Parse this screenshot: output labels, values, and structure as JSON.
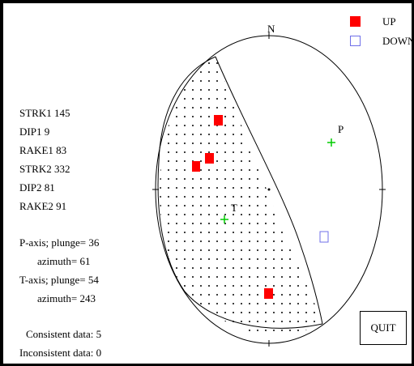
{
  "params": {
    "strk1": "STRK1  145",
    "dip1": "DIP1   9",
    "rake1": "RAKE1  83",
    "strk2": "STRK2  332",
    "dip2": "DIP2   81",
    "rake2": "RAKE2  91"
  },
  "axes": {
    "p_plunge": "P-axis; plunge= 36",
    "p_azimuth": "azimuth= 61",
    "t_plunge": "T-axis; plunge= 54",
    "t_azimuth": "azimuth= 243"
  },
  "summary": {
    "consistent": "Consistent data:  5",
    "inconsistent": "Inconsistent data:  0"
  },
  "legend": {
    "up_label": "UP",
    "down_label": "DOWN"
  },
  "net": {
    "north_label": "N",
    "p_label": "P",
    "t_label": "T"
  },
  "buttons": {
    "quit_label": "QUIT"
  },
  "colors": {
    "up": "#ff0000",
    "down": "#6f6fe8",
    "axis_marker": "#00cc00",
    "frame": "#000000"
  }
}
